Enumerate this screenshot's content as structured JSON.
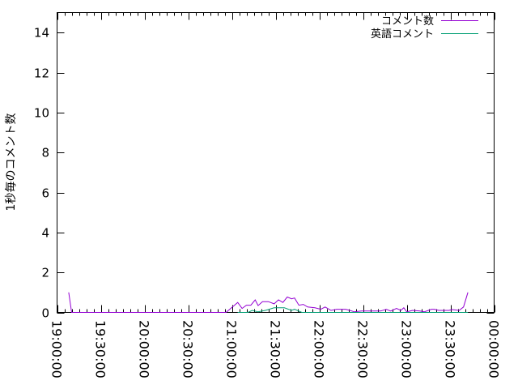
{
  "chart_data": {
    "type": "line",
    "title": "",
    "xlabel": "",
    "ylabel": "1秒毎のコメント数",
    "xlim": [
      "19:00:00",
      "00:00:00"
    ],
    "ylim": [
      0,
      15
    ],
    "x_tick_labels": [
      "19:00:00",
      "19:30:00",
      "20:00:00",
      "20:30:00",
      "21:00:00",
      "21:30:00",
      "22:00:00",
      "22:30:00",
      "23:00:00",
      "23:30:00",
      "00:00:00"
    ],
    "y_tick_labels": [
      "0",
      "2",
      "4",
      "6",
      "8",
      "10",
      "12",
      "14"
    ],
    "grid": false,
    "legend_position": "top-right",
    "series": [
      {
        "name": "コメント数",
        "color": "#9400d3",
        "x": [
          "19:08",
          "19:10",
          "20:56",
          "21:04",
          "21:07",
          "21:10",
          "21:13",
          "21:16",
          "21:18",
          "21:21",
          "21:25",
          "21:29",
          "21:32",
          "21:35",
          "21:38",
          "21:41",
          "21:43",
          "21:46",
          "21:49",
          "21:52",
          "21:57",
          "22:01",
          "22:04",
          "22:08",
          "22:12",
          "22:18",
          "22:21",
          "22:24",
          "22:29",
          "22:34",
          "22:42",
          "22:46",
          "22:49",
          "22:53",
          "22:56",
          "22:58",
          "23:00",
          "23:04",
          "23:09",
          "23:12",
          "23:17",
          "23:19",
          "23:22",
          "23:29",
          "23:31",
          "23:36",
          "23:39",
          "23:42"
        ],
        "values": [
          1,
          0,
          0,
          0.5,
          0.2,
          0.36,
          0.36,
          0.63,
          0.34,
          0.54,
          0.54,
          0.43,
          0.63,
          0.5,
          0.77,
          0.68,
          0.72,
          0.36,
          0.4,
          0.27,
          0.23,
          0.16,
          0.27,
          0.1,
          0.16,
          0.16,
          0.1,
          0.03,
          0.07,
          0.07,
          0.07,
          0.16,
          0.07,
          0.2,
          0.1,
          0.23,
          0.03,
          0.1,
          0.07,
          0.03,
          0.16,
          0.16,
          0.1,
          0.1,
          0.14,
          0.1,
          0.27,
          1
        ]
      },
      {
        "name": "英語コメント",
        "color": "#009e73",
        "x": [
          "21:04",
          "21:11",
          "21:14",
          "21:18",
          "21:23",
          "21:29",
          "21:36",
          "21:41",
          "21:43",
          "21:48",
          "22:30",
          "23:00",
          "23:42"
        ],
        "values": [
          0,
          0,
          0.1,
          0.03,
          0.1,
          0.23,
          0.23,
          0.1,
          0.16,
          0,
          0,
          0,
          0
        ]
      }
    ]
  }
}
